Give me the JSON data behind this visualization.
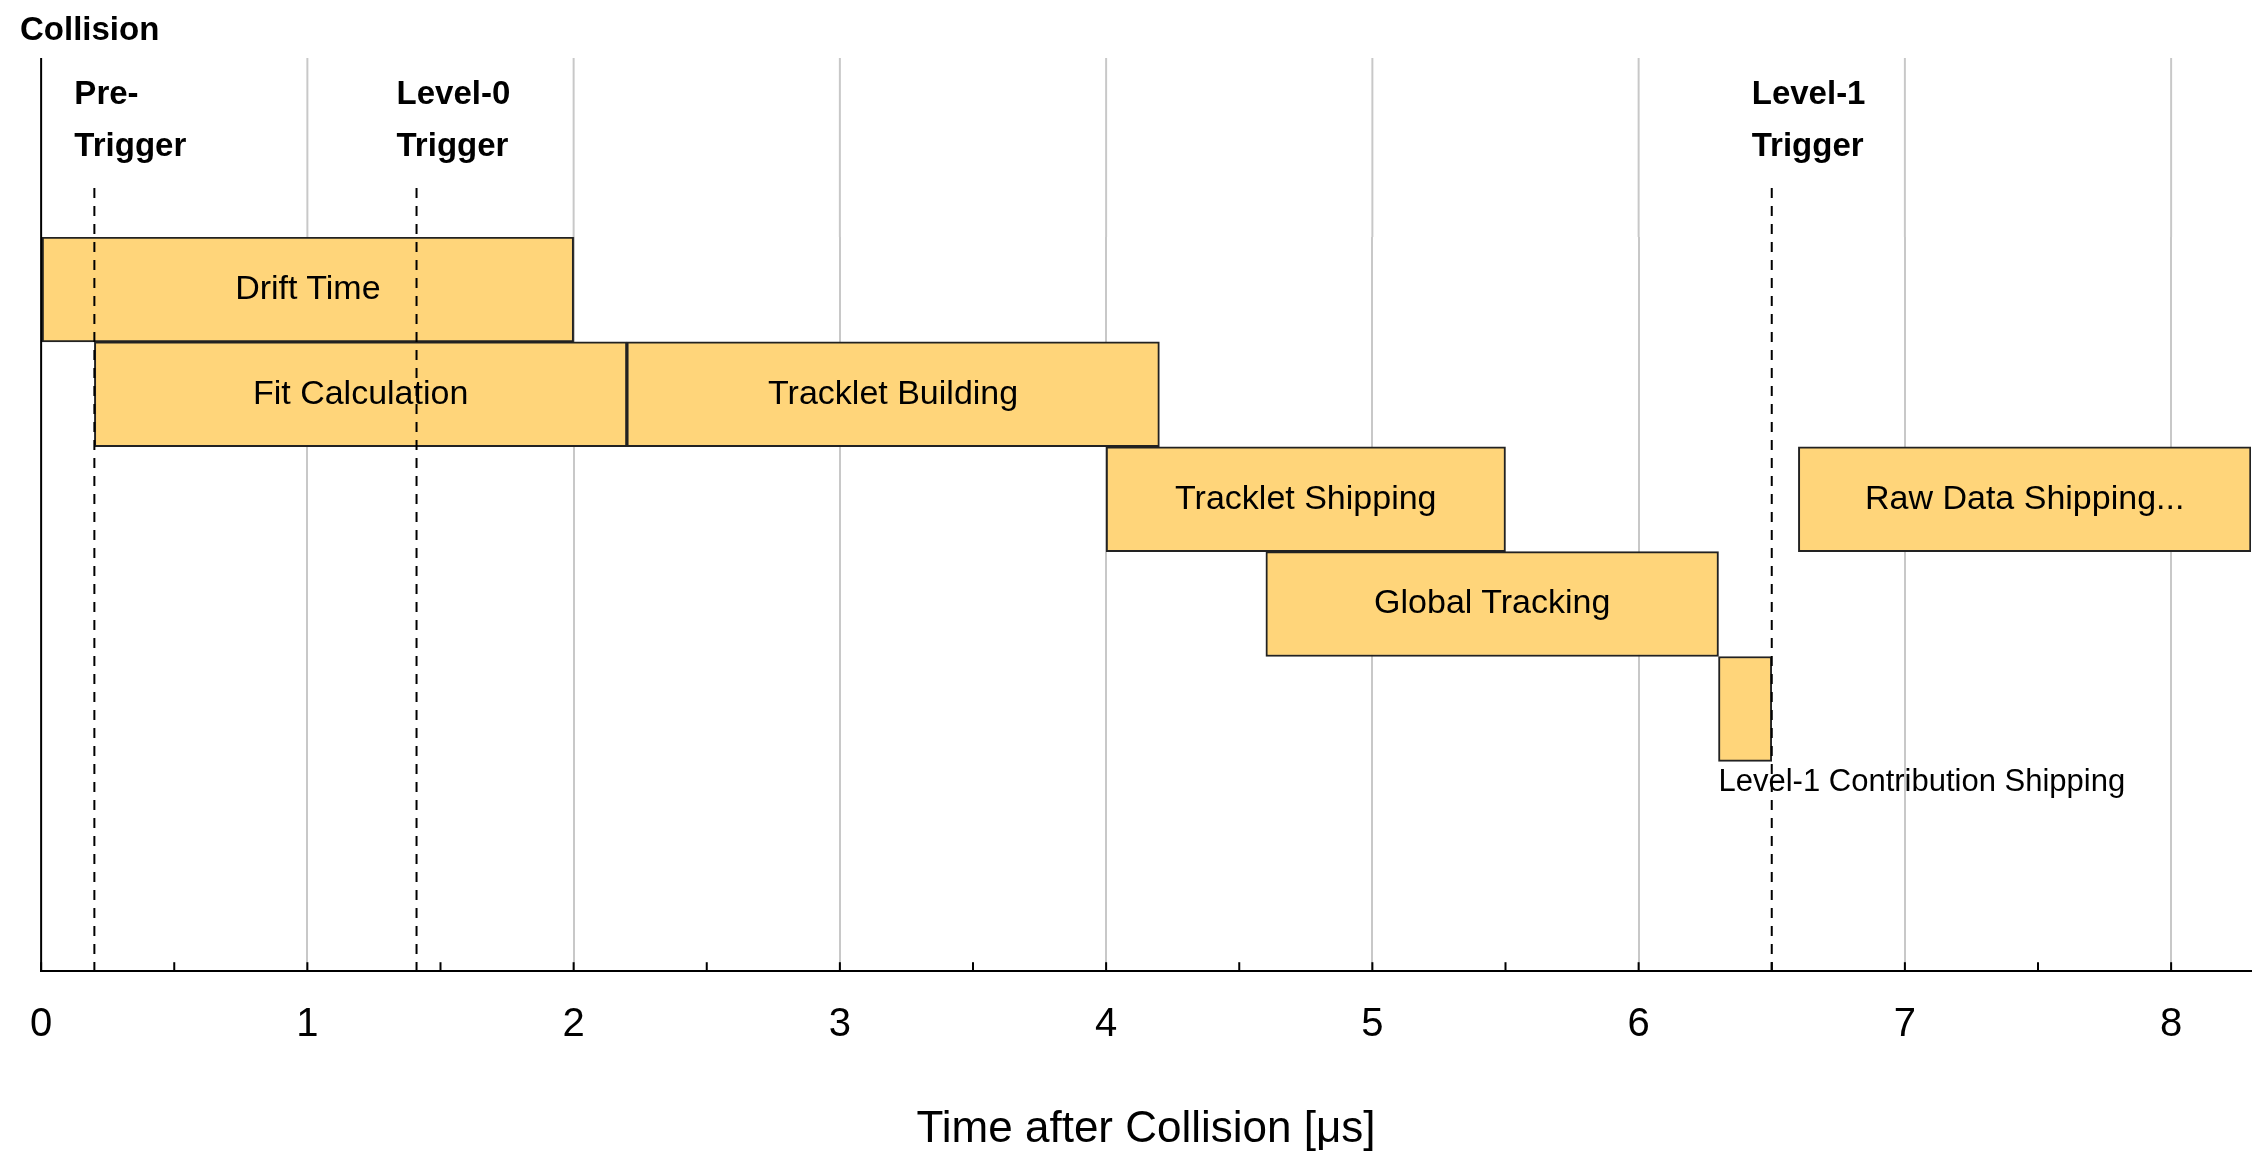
{
  "chart_data": {
    "type": "bar",
    "orientation": "horizontal",
    "title": "Collision",
    "xlabel": "Time after Collision [μs]",
    "categories": [
      null,
      null,
      null,
      null,
      null,
      null,
      null
    ],
    "series": [
      {
        "color": "#ffd57a",
        "values": [
          2.0,
          2.0,
          1.5,
          1.7,
          0.2,
          null,
          null
        ],
        "base": [
          0,
          0.2,
          4.0,
          4.6,
          6.3,
          null,
          null
        ],
        "value_labels": [
          "Drift Time",
          "Fit Calculation",
          "Tracklet Shipping",
          "Global Tracking",
          "Level-1 Contribution Shipping",
          null,
          null
        ]
      },
      {
        "color": "#ffd57a",
        "values": [
          null,
          2.0,
          1.7,
          null,
          null,
          null,
          null
        ],
        "base": [
          null,
          2.2,
          6.6,
          null,
          null,
          null,
          null
        ],
        "value_labels": [
          null,
          "Tracklet Building",
          "Raw Data Shipping...",
          null,
          null,
          null,
          null
        ]
      }
    ],
    "xlim": [
      0,
      8.3
    ],
    "xticks": [
      0,
      {
        "value": 0.5,
        "label": null
      },
      1,
      {
        "value": 1.5,
        "label": null
      },
      2,
      {
        "value": 2.5,
        "label": null
      },
      3,
      {
        "value": 3.5,
        "label": null
      },
      4,
      {
        "value": 4.5,
        "label": null
      },
      5,
      {
        "value": 5.5,
        "label": null
      },
      6,
      {
        "value": 6.5,
        "label": null
      },
      7,
      {
        "value": 7.5,
        "label": null
      },
      8
    ],
    "grid": "x",
    "legend": false,
    "tick_labels": "x",
    "ref_lines": [
      {
        "axis": "x",
        "value": 0.2,
        "label": "Pre-Trigger",
        "line_style": "dashed"
      },
      {
        "axis": "x",
        "value": 1.41,
        "label": "Level-0 Trigger",
        "line_style": "dashed"
      },
      {
        "axis": "x",
        "value": 6.5,
        "label": "Level-1 Trigger",
        "line_style": "dashed"
      }
    ]
  }
}
